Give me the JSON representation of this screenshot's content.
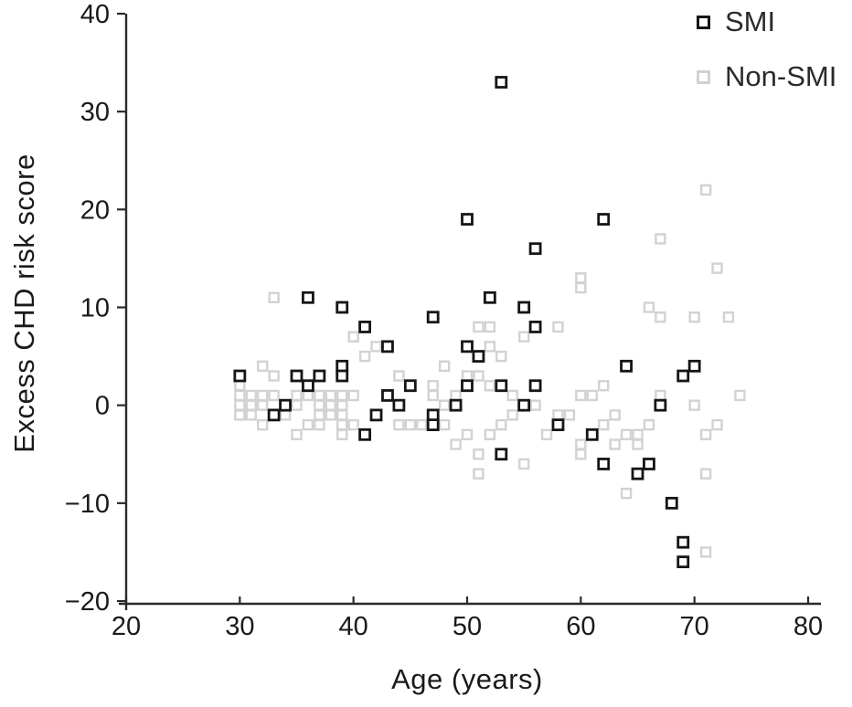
{
  "figure": {
    "background": "#ffffff",
    "axis_color": "#2a2a2a",
    "tick_label_color": "#1a1a1a"
  },
  "chart_data": {
    "type": "scatter",
    "title": "",
    "xlabel": "Age (years)",
    "ylabel": "Excess CHD risk score",
    "xlim": [
      20,
      80
    ],
    "ylim": [
      -20,
      40
    ],
    "xticks": [
      20,
      30,
      40,
      50,
      60,
      70,
      80
    ],
    "yticks": [
      -20,
      -10,
      0,
      10,
      20,
      30,
      40
    ],
    "grid": false,
    "legend_position": "top-right",
    "marker": "open-square",
    "series": [
      {
        "name": "SMI",
        "color": "#151515",
        "marker_size": 11,
        "points": [
          [
            30,
            3
          ],
          [
            33,
            -1
          ],
          [
            34,
            0
          ],
          [
            35,
            3
          ],
          [
            36,
            11
          ],
          [
            36,
            2
          ],
          [
            37,
            3
          ],
          [
            39,
            10
          ],
          [
            39,
            4
          ],
          [
            39,
            3
          ],
          [
            41,
            8
          ],
          [
            41,
            -3
          ],
          [
            42,
            -1
          ],
          [
            43,
            6
          ],
          [
            43,
            1
          ],
          [
            44,
            0
          ],
          [
            45,
            2
          ],
          [
            47,
            9
          ],
          [
            47,
            -1
          ],
          [
            47,
            -2
          ],
          [
            49,
            0
          ],
          [
            50,
            19
          ],
          [
            50,
            6
          ],
          [
            50,
            2
          ],
          [
            51,
            5
          ],
          [
            52,
            11
          ],
          [
            53,
            33
          ],
          [
            53,
            2
          ],
          [
            53,
            -5
          ],
          [
            55,
            10
          ],
          [
            55,
            0
          ],
          [
            56,
            16
          ],
          [
            56,
            8
          ],
          [
            56,
            2
          ],
          [
            58,
            -2
          ],
          [
            61,
            -3
          ],
          [
            62,
            19
          ],
          [
            62,
            -6
          ],
          [
            64,
            4
          ],
          [
            65,
            -7
          ],
          [
            66,
            -6
          ],
          [
            67,
            0
          ],
          [
            68,
            -10
          ],
          [
            69,
            3
          ],
          [
            69,
            -14
          ],
          [
            69,
            -16
          ],
          [
            70,
            4
          ]
        ]
      },
      {
        "name": "Non-SMI",
        "color": "#d2d2d2",
        "marker_size": 10,
        "points": [
          [
            71,
            22
          ],
          [
            67,
            17
          ],
          [
            72,
            14
          ],
          [
            60,
            13
          ],
          [
            60,
            12
          ],
          [
            33,
            11
          ],
          [
            66,
            10
          ],
          [
            67,
            9
          ],
          [
            70,
            9
          ],
          [
            73,
            9
          ],
          [
            51,
            8
          ],
          [
            52,
            8
          ],
          [
            58,
            8
          ],
          [
            40,
            7
          ],
          [
            55,
            7
          ],
          [
            42,
            6
          ],
          [
            52,
            6
          ],
          [
            41,
            5
          ],
          [
            53,
            5
          ],
          [
            32,
            4
          ],
          [
            48,
            4
          ],
          [
            33,
            3
          ],
          [
            44,
            3
          ],
          [
            50,
            3
          ],
          [
            51,
            3
          ],
          [
            30,
            2
          ],
          [
            47,
            2
          ],
          [
            52,
            2
          ],
          [
            62,
            2
          ],
          [
            30,
            1
          ],
          [
            31,
            1
          ],
          [
            32,
            1
          ],
          [
            33,
            1
          ],
          [
            35,
            1
          ],
          [
            36,
            1
          ],
          [
            37,
            1
          ],
          [
            38,
            1
          ],
          [
            39,
            1
          ],
          [
            40,
            1
          ],
          [
            47,
            1
          ],
          [
            49,
            1
          ],
          [
            54,
            1
          ],
          [
            60,
            1
          ],
          [
            61,
            1
          ],
          [
            67,
            1
          ],
          [
            74,
            1
          ],
          [
            30,
            0
          ],
          [
            31,
            0
          ],
          [
            32,
            0
          ],
          [
            35,
            0
          ],
          [
            37,
            0
          ],
          [
            38,
            0
          ],
          [
            39,
            0
          ],
          [
            48,
            0
          ],
          [
            56,
            0
          ],
          [
            70,
            0
          ],
          [
            30,
            -1
          ],
          [
            31,
            -1
          ],
          [
            34,
            -1
          ],
          [
            37,
            -1
          ],
          [
            38,
            -1
          ],
          [
            39,
            -1
          ],
          [
            54,
            -1
          ],
          [
            58,
            -1
          ],
          [
            59,
            -1
          ],
          [
            63,
            -1
          ],
          [
            32,
            -2
          ],
          [
            36,
            -2
          ],
          [
            37,
            -2
          ],
          [
            39,
            -2
          ],
          [
            40,
            -2
          ],
          [
            44,
            -2
          ],
          [
            45,
            -2
          ],
          [
            46,
            -2
          ],
          [
            48,
            -2
          ],
          [
            53,
            -2
          ],
          [
            62,
            -2
          ],
          [
            66,
            -2
          ],
          [
            72,
            -2
          ],
          [
            35,
            -3
          ],
          [
            39,
            -3
          ],
          [
            50,
            -3
          ],
          [
            52,
            -3
          ],
          [
            57,
            -3
          ],
          [
            64,
            -3
          ],
          [
            65,
            -3
          ],
          [
            71,
            -3
          ],
          [
            49,
            -4
          ],
          [
            60,
            -4
          ],
          [
            63,
            -4
          ],
          [
            65,
            -4
          ],
          [
            51,
            -5
          ],
          [
            60,
            -5
          ],
          [
            55,
            -6
          ],
          [
            51,
            -7
          ],
          [
            71,
            -7
          ],
          [
            64,
            -9
          ],
          [
            71,
            -15
          ]
        ]
      }
    ]
  }
}
